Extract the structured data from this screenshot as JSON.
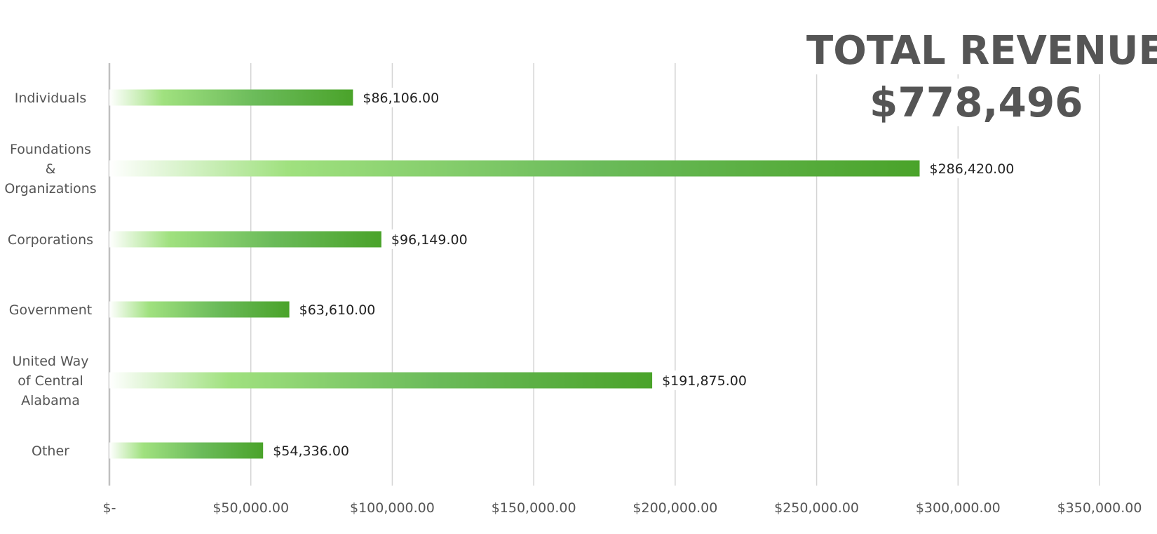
{
  "headline": {
    "title": "TOTAL REVENUE:",
    "value": "$778,496"
  },
  "chart_data": {
    "type": "bar",
    "orientation": "horizontal",
    "categories": [
      "Individuals",
      "Foundations & Organizations",
      "Corporations",
      "Government",
      "United Way of Central Alabama",
      "Other"
    ],
    "category_lines": [
      [
        "Individuals"
      ],
      [
        "Foundations",
        "&",
        "Organizations"
      ],
      [
        "Corporations"
      ],
      [
        "Government"
      ],
      [
        "United Way",
        "of Central",
        "Alabama"
      ],
      [
        "Other"
      ]
    ],
    "values": [
      86106,
      286420,
      96149,
      63610,
      191875,
      54336
    ],
    "data_labels": [
      "$86,106.00",
      "$286,420.00",
      "$96,149.00",
      "$63,610.00",
      "$191,875.00",
      "$54,336.00"
    ],
    "xlim": [
      0,
      350000
    ],
    "xticks": [
      0,
      50000,
      100000,
      150000,
      200000,
      250000,
      300000,
      350000
    ],
    "xtick_labels": [
      "$-",
      "$50,000.00",
      "$100,000.00",
      "$150,000.00",
      "$200,000.00",
      "$250,000.00",
      "$300,000.00",
      "$350,000.00"
    ],
    "grid": true,
    "title": "",
    "xlabel": "",
    "ylabel": "",
    "colors": {
      "bar_start": "#ffffff",
      "bar_light": "#a0e17f",
      "bar_mid": "#6bbb5a",
      "bar_end": "#4aa32a",
      "grid": "#d4d4d4",
      "axis": "#bfbfbf",
      "text": "#555555",
      "headline": "#555555"
    }
  }
}
